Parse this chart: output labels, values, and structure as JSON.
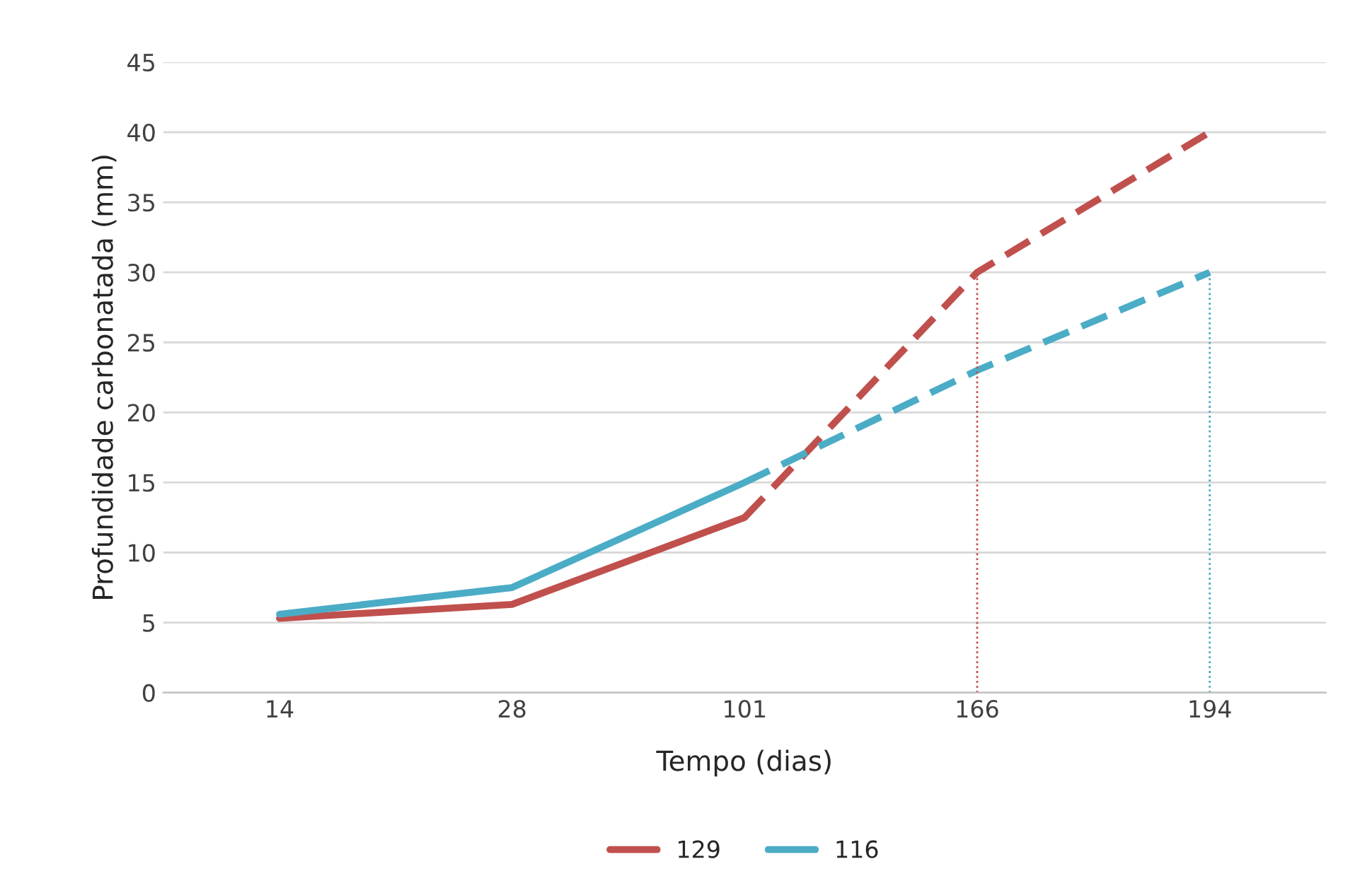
{
  "chart_data": {
    "type": "line",
    "xlabel": "Tempo (dias)",
    "ylabel": "Profundidade carbonatada (mm)",
    "categories": [
      "14",
      "28",
      "101",
      "166",
      "194"
    ],
    "series": [
      {
        "name": "129",
        "color": "#c0504d",
        "values": [
          5.3,
          6.3,
          12.5,
          null,
          null
        ],
        "line_style": "solid"
      },
      {
        "name": "116",
        "color": "#4bacc6",
        "values": [
          5.6,
          7.5,
          15,
          null,
          null
        ],
        "line_style": "solid"
      },
      {
        "color": "#c0504d",
        "values": [
          null,
          null,
          12.5,
          30,
          40
        ],
        "line_style": "dashed"
      },
      {
        "color": "#4bacc6",
        "values": [
          null,
          null,
          15,
          23,
          30
        ],
        "line_style": "dashed"
      },
      {
        "color": "#c0504d",
        "x": [
          "166",
          "166"
        ],
        "values": [
          0,
          30
        ],
        "line_style": "dotted"
      },
      {
        "color": "#4bacc6",
        "x": [
          "194",
          "194"
        ],
        "values": [
          0,
          30
        ],
        "line_style": "dotted"
      }
    ],
    "ylim": [
      0,
      45
    ],
    "yticks": [
      0,
      5,
      10,
      15,
      20,
      25,
      30,
      35,
      40,
      45
    ],
    "grid": "y",
    "legend": "bottom",
    "marker": "none"
  }
}
